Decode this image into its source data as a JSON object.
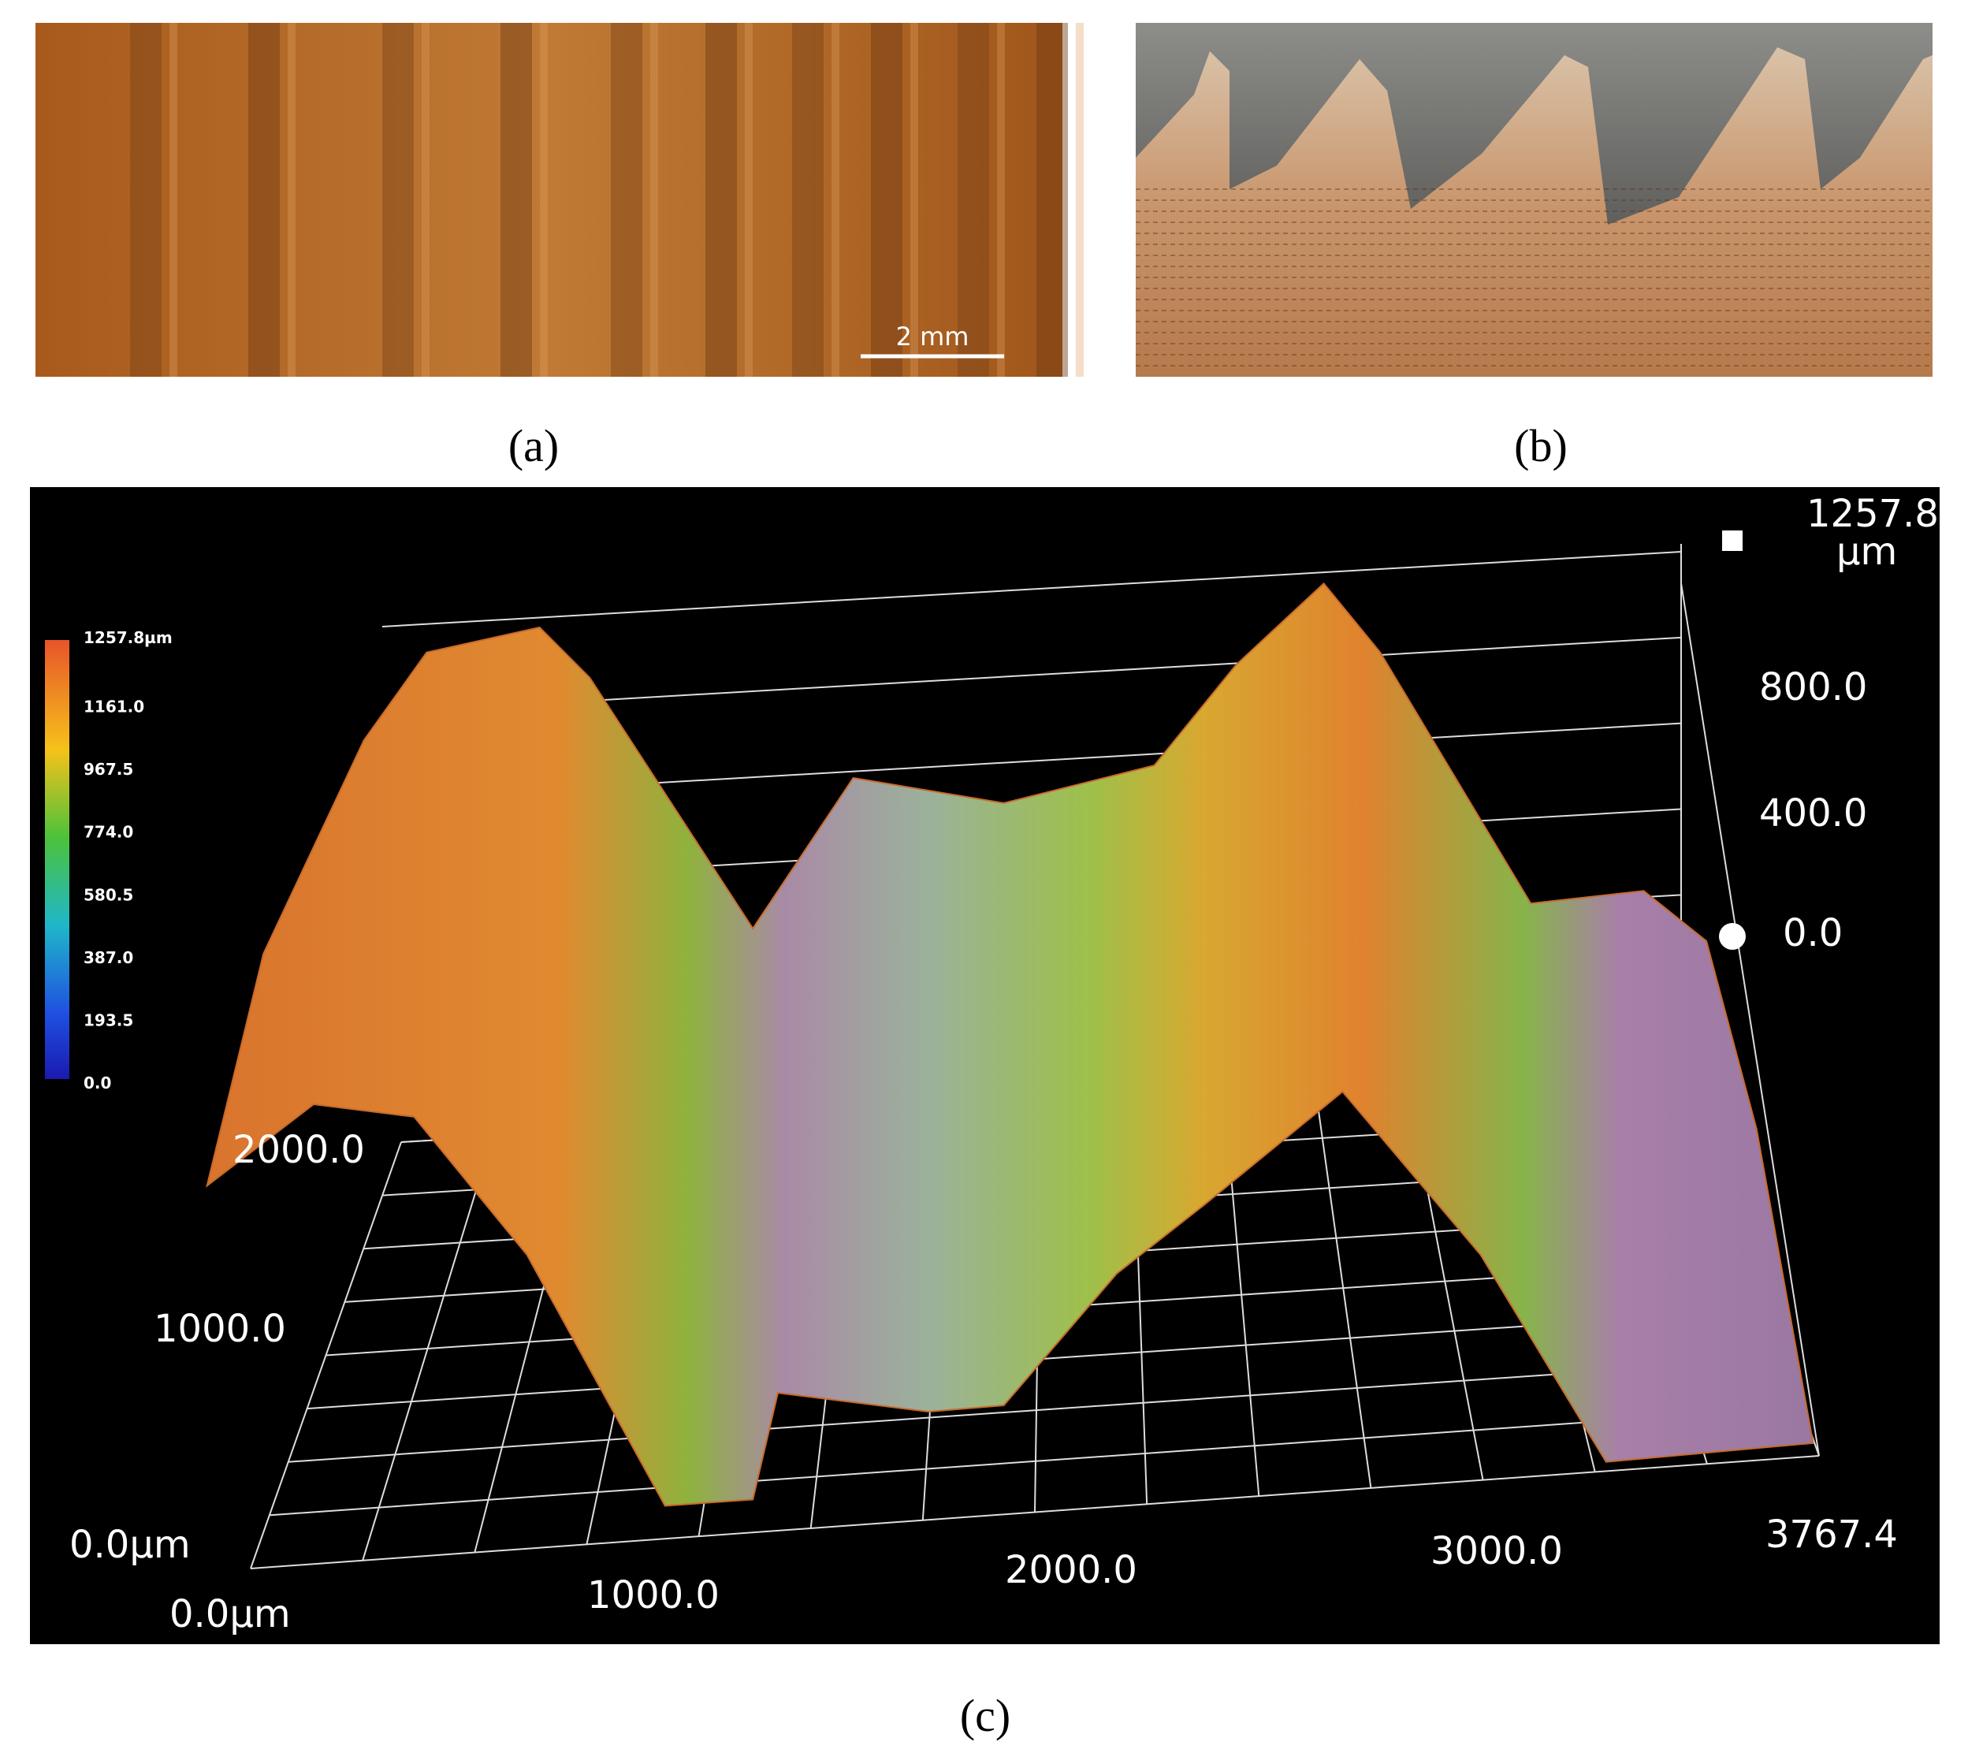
{
  "panel_a": {
    "scale_bar": "2 mm",
    "label": "(a)"
  },
  "panel_b": {
    "label": "(b)"
  },
  "panel_c": {
    "label": "(c)",
    "colorbar": {
      "labels": [
        "1257.8µm",
        "1161.0",
        "967.5",
        "774.0",
        "580.5",
        "387.0",
        "193.5",
        "0.0"
      ]
    },
    "z_axis": {
      "labels": [
        "1257.8",
        "800.0",
        "400.0",
        "0.0"
      ],
      "unit": "µm"
    },
    "y_axis": {
      "labels": [
        "2000.0",
        "1000.0",
        "0.0µm"
      ]
    },
    "x_axis": {
      "labels": [
        "0.0µm",
        "1000.0",
        "2000.0",
        "3000.0",
        "3767.4"
      ]
    }
  }
}
